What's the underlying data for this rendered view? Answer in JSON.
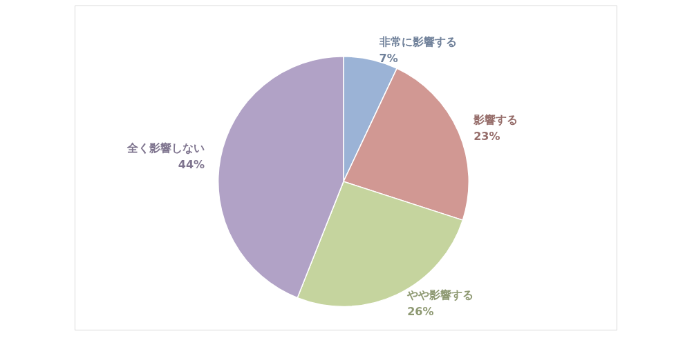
{
  "chart_data": {
    "type": "pie",
    "categories": [
      "非常に影響する",
      "影響する",
      "やや影響する",
      "全く影響しない"
    ],
    "values": [
      7,
      23,
      26,
      44
    ],
    "colors": [
      "#9bb3d6",
      "#d19893",
      "#c5d49e",
      "#b1a2c6"
    ],
    "value_labels": [
      "7%",
      "23%",
      "26%",
      "44%"
    ],
    "legend": false
  }
}
